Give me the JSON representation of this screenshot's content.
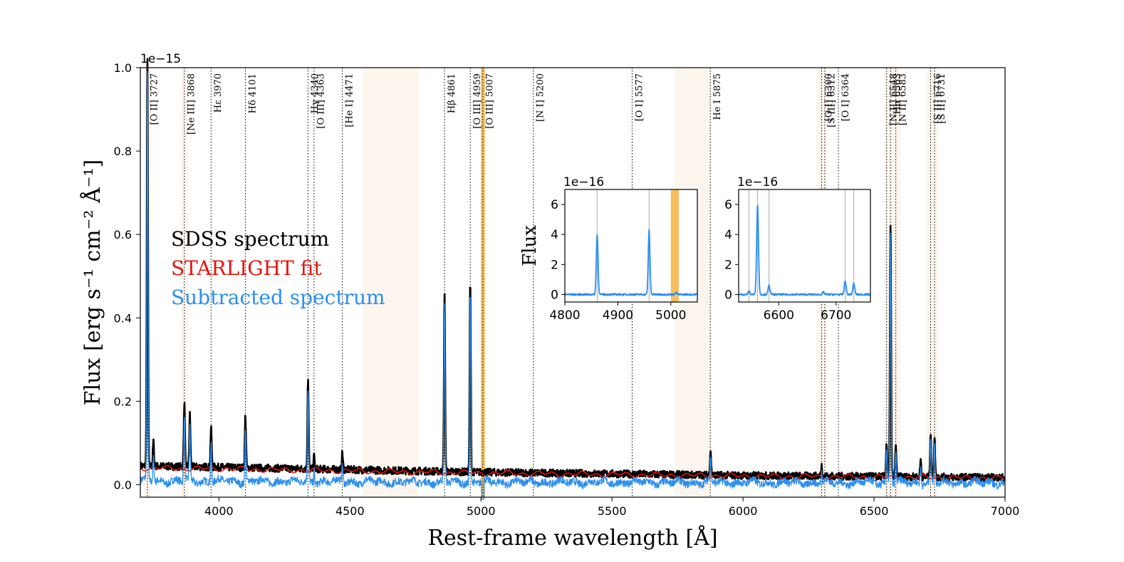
{
  "chart_data": {
    "type": "line",
    "title": "",
    "xlabel": "Rest-frame wavelength [Å]",
    "ylabel": "Flux [erg s⁻¹ cm⁻² Å⁻¹]",
    "xlim": [
      3700,
      7000
    ],
    "ylim": [
      -0.03,
      1.0
    ],
    "y_offset_label": "1e−15",
    "x_ticks": [
      4000,
      4500,
      5000,
      5500,
      6000,
      6500,
      7000
    ],
    "y_ticks": [
      0.0,
      0.2,
      0.4,
      0.6,
      0.8,
      1.0
    ],
    "x_tick_labels": [
      "4000",
      "4500",
      "5000",
      "5500",
      "6000",
      "6500",
      "7000"
    ],
    "y_tick_labels": [
      "0.0",
      "0.2",
      "0.4",
      "0.6",
      "0.8",
      "1.0"
    ],
    "legend": {
      "placement": "center-left",
      "entries": [
        {
          "label": "SDSS spectrum",
          "color": "#000000"
        },
        {
          "label": "STARLIGHT fit",
          "color": "#e8120c"
        },
        {
          "label": "Subtracted spectrum",
          "color": "#2a8ff0"
        }
      ]
    },
    "continuum": {
      "x": [
        3700,
        4000,
        5000,
        6000,
        7000
      ],
      "sdss": [
        0.045,
        0.042,
        0.03,
        0.022,
        0.017
      ],
      "starlight": [
        0.04,
        0.038,
        0.028,
        0.021,
        0.016
      ]
    },
    "emission_lines": [
      {
        "wave": 3727,
        "peak": 0.975
      },
      {
        "wave": 3750,
        "peak": 0.06
      },
      {
        "wave": 3868,
        "peak": 0.155
      },
      {
        "wave": 3889,
        "peak": 0.125
      },
      {
        "wave": 3970,
        "peak": 0.095
      },
      {
        "wave": 4101,
        "peak": 0.125
      },
      {
        "wave": 4340,
        "peak": 0.215
      },
      {
        "wave": 4363,
        "peak": 0.03
      },
      {
        "wave": 4471,
        "peak": 0.04
      },
      {
        "wave": 4861,
        "peak": 0.42
      },
      {
        "wave": 4959,
        "peak": 0.455
      },
      {
        "wave": 5007,
        "peak": 0.0
      },
      {
        "wave": 5876,
        "peak": 0.06
      },
      {
        "wave": 6300,
        "peak": 0.025
      },
      {
        "wave": 6548,
        "peak": 0.08
      },
      {
        "wave": 6563,
        "peak": 0.61
      },
      {
        "wave": 6583,
        "peak": 0.07
      },
      {
        "wave": 6678,
        "peak": 0.04
      },
      {
        "wave": 6716,
        "peak": 0.105
      },
      {
        "wave": 6731,
        "peak": 0.09
      }
    ],
    "line_markers": [
      {
        "wave": 3727,
        "label": "[O II] 3727"
      },
      {
        "wave": 3868,
        "label": "[Ne III] 3868"
      },
      {
        "wave": 3970,
        "label": "Hε 3970"
      },
      {
        "wave": 4101,
        "label": "Hδ 4101"
      },
      {
        "wave": 4340,
        "label": "Hγ 4340"
      },
      {
        "wave": 4363,
        "label": "[O III] 4363"
      },
      {
        "wave": 4471,
        "label": "[He I] 4471"
      },
      {
        "wave": 4861,
        "label": "Hβ 4861"
      },
      {
        "wave": 4959,
        "label": "[O III] 4959"
      },
      {
        "wave": 5007,
        "label": "[O III] 5007"
      },
      {
        "wave": 5200,
        "label": "[N I] 5200"
      },
      {
        "wave": 5577,
        "label": "[O I] 5577"
      },
      {
        "wave": 5875,
        "label": "He I 5875"
      },
      {
        "wave": 6300,
        "label": "[O I] 6300"
      },
      {
        "wave": 6312,
        "label": "[S III] 6312"
      },
      {
        "wave": 6364,
        "label": "[O I] 6364"
      },
      {
        "wave": 6548,
        "label": "[N II] 6548"
      },
      {
        "wave": 6563,
        "label": "Hα 6563"
      },
      {
        "wave": 6583,
        "label": "[N II] 6583"
      },
      {
        "wave": 6716,
        "label": "[S II] 6716"
      },
      {
        "wave": 6731,
        "label": "[S II] 6731"
      }
    ],
    "shaded_regions": [
      {
        "x0": 3715,
        "x1": 3740,
        "kind": "mask"
      },
      {
        "x0": 3855,
        "x1": 3880,
        "kind": "mask"
      },
      {
        "x0": 4550,
        "x1": 4760,
        "kind": "mask"
      },
      {
        "x0": 5000,
        "x1": 5015,
        "kind": "bad"
      },
      {
        "x0": 5740,
        "x1": 5880,
        "kind": "mask"
      },
      {
        "x0": 6280,
        "x1": 6320,
        "kind": "mask"
      },
      {
        "x0": 6540,
        "x1": 6600,
        "kind": "mask"
      },
      {
        "x0": 6700,
        "x1": 6745,
        "kind": "mask"
      }
    ],
    "insets": [
      {
        "xlim": [
          4800,
          5050
        ],
        "ylim": [
          -0.5,
          7
        ],
        "x_ticks": [
          4800,
          4900,
          5000
        ],
        "y_ticks": [
          0,
          2,
          4,
          6
        ],
        "x_tick_labels": [
          "4800",
          "4900",
          "5000"
        ],
        "y_tick_labels": [
          "0",
          "2",
          "4",
          "6"
        ],
        "ylabel": "Flux",
        "y_offset_label": "1e−16",
        "vlines": [
          4861,
          4959
        ],
        "band": [
          5000,
          5015
        ],
        "peaks": [
          {
            "wave": 4861,
            "peak": 4.0
          },
          {
            "wave": 4959,
            "peak": 4.3
          },
          {
            "wave": 5010,
            "peak": 0.1
          }
        ]
      },
      {
        "xlim": [
          6530,
          6760
        ],
        "ylim": [
          -0.5,
          7
        ],
        "x_ticks": [
          6600,
          6700
        ],
        "y_ticks": [
          0,
          2,
          4,
          6
        ],
        "x_tick_labels": [
          "6600",
          "6700"
        ],
        "y_tick_labels": [
          "0",
          "2",
          "4",
          "6"
        ],
        "ylabel": "",
        "y_offset_label": "1e−16",
        "vlines": [
          6548,
          6563,
          6583,
          6716,
          6731
        ],
        "band": null,
        "peaks": [
          {
            "wave": 6548,
            "peak": 0.2
          },
          {
            "wave": 6563,
            "peak": 6.0
          },
          {
            "wave": 6583,
            "peak": 0.6
          },
          {
            "wave": 6678,
            "peak": 0.15
          },
          {
            "wave": 6716,
            "peak": 0.9
          },
          {
            "wave": 6731,
            "peak": 0.75
          }
        ]
      }
    ]
  }
}
